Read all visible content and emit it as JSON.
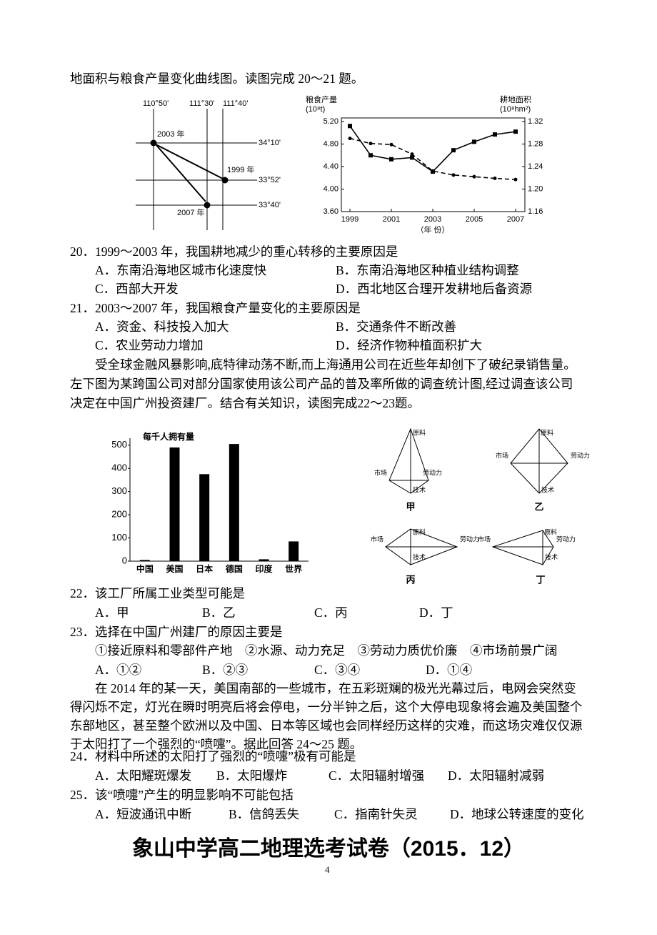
{
  "intro": "地面积与粮食产量变化曲线图。读图完成 20～21 题。",
  "map": {
    "lon_labels": [
      "110°50'",
      "111°30'",
      "111°40'"
    ],
    "lat_labels": [
      "34°10'",
      "33°52'",
      "33°40'"
    ],
    "point_labels": [
      "2003 年",
      "1999 年",
      "2007 年"
    ]
  },
  "line_chart": {
    "type": "line",
    "ylabel": [
      "粮食产量",
      "(10⁸t)"
    ],
    "y2label": [
      "耕地面积",
      "(10⁸hm²)"
    ],
    "xlabel": "（年 份）",
    "x": [
      1999,
      2000,
      2001,
      2002,
      2003,
      2004,
      2005,
      2006,
      2007
    ],
    "xlim": [
      1999,
      2007
    ],
    "xticks": [
      1999,
      2001,
      2003,
      2005,
      2007
    ],
    "ylim": [
      3.6,
      5.2
    ],
    "yticks": [
      {
        "value": 3.6,
        "label": "3.60"
      },
      {
        "value": 4.0,
        "label": "4.00"
      },
      {
        "value": 4.4,
        "label": "4.40"
      },
      {
        "value": 4.8,
        "label": "4.80"
      },
      {
        "value": 5.2,
        "label": "5.20"
      }
    ],
    "y2lim": [
      1.16,
      1.32
    ],
    "y2ticks": [
      1.16,
      {
        "value": 1.2,
        "label": "1.20"
      },
      1.24,
      1.28,
      1.32
    ],
    "series": [
      {
        "color": "#000",
        "style": "solid",
        "values": [
          5.12,
          4.6,
          4.53,
          4.56,
          4.31,
          4.69,
          4.84,
          4.97,
          5.02
        ]
      },
      {
        "color": "#000",
        "style": "dashed",
        "axis": "y2",
        "values": [
          1.29,
          1.281,
          1.279,
          1.262,
          1.232,
          1.225,
          1.222,
          1.219,
          1.217
        ]
      }
    ]
  },
  "questions_a": [
    {
      "stem": "20．1999～2003 年，我国耕地减少的重心转移的主要原因是",
      "options": [
        "A．东南沿海地区城市化速度快",
        "B．东南沿海地区种植业结构调整",
        "C．西部大开发",
        "D．西北地区合理开发耕地后备资源"
      ]
    },
    {
      "stem": "21．2003～2007 年，我国粮食产量变化的主要原因是",
      "options": [
        "A．资金、科技投入加大",
        "B．交通条件不断改善",
        "C．农业劳动力增加",
        "D．经济作物种植面积扩大"
      ]
    }
  ],
  "paragraph_1": [
    "受全球金融风暴影响,底特律动荡不断,而上海通用公司在近些年却创下了破纪录销售量。",
    "左下图为某跨国公司对部分国家使用该公司产品的普及率所做的调查统计图,经过调查该公司",
    "决定在中国广州投资建厂。结合有关知识，读图完成22～23题。"
  ],
  "bar_chart": {
    "type": "bar",
    "ylabel": "每千人拥有量",
    "categories": [
      "中国",
      "美国",
      "日本",
      "德国",
      "印度",
      "世界"
    ],
    "values": [
      5,
      490,
      375,
      505,
      8,
      85
    ],
    "color": "#000",
    "ylim": [
      0,
      530
    ],
    "yticks": [
      0,
      100,
      200,
      300,
      400,
      500
    ]
  },
  "diagrams": [
    {
      "name": "甲",
      "labels": [
        "原料",
        "劳动力",
        "市场",
        "技术"
      ]
    },
    {
      "name": "乙",
      "labels": [
        "原料",
        "劳动力",
        "市场",
        "技术"
      ]
    },
    {
      "name": "丙",
      "labels": [
        "原料",
        "劳动力",
        "市场",
        "技术"
      ]
    },
    {
      "name": "丁",
      "labels": [
        "原料",
        "劳动力",
        "市场",
        "技术"
      ]
    }
  ],
  "questions_b": [
    {
      "stem": "22．该工厂所属工业类型可能是",
      "options": [
        "A．甲",
        "B．乙",
        "C．丙",
        "D．丁"
      ]
    },
    {
      "stem": "23．选择在中国广州建厂的原因主要是",
      "items": "①接近原料和零部件产地　②水源、动力充足　③劳动力质优价廉　④市场前景广阔",
      "options": [
        "A．①②",
        "B．②③",
        "C．③④",
        "D．①④"
      ]
    }
  ],
  "paragraph_2": [
    "在 2014 年的某一天，美国南部的一些城市，在五彩斑斓的极光光幕过后，电网会突然变",
    "得闪烁不定，灯光在瞬时明亮后将会停电，一分半钟之后，这个大停电现象将会遍及美国整个",
    "东部地区，甚至整个欧洲以及中国、日本等区域也会同样经历这样的灾难，而这场灾难仅仅源",
    "于太阳打了一个强烈的“喷嚏”。据此回答 24～25 题。"
  ],
  "questions_c": [
    {
      "stem": "24．材料中所述的太阳打了强烈的“喷嚏”极有可能是",
      "options": [
        "A．太阳耀斑爆发",
        "B．太阳爆炸",
        "C．太阳辐射增强",
        "D．太阳辐射减弱"
      ]
    },
    {
      "stem": "25．该“喷嚏”产生的明显影响不可能包括",
      "options": [
        "A．短波通讯中断",
        "B．信鸽丢失",
        "C．指南针失灵",
        "D．地球公转速度的变化"
      ]
    }
  ],
  "footer": {
    "title": "象山中学高二地理选考试卷（2015．12）",
    "page": "4"
  }
}
